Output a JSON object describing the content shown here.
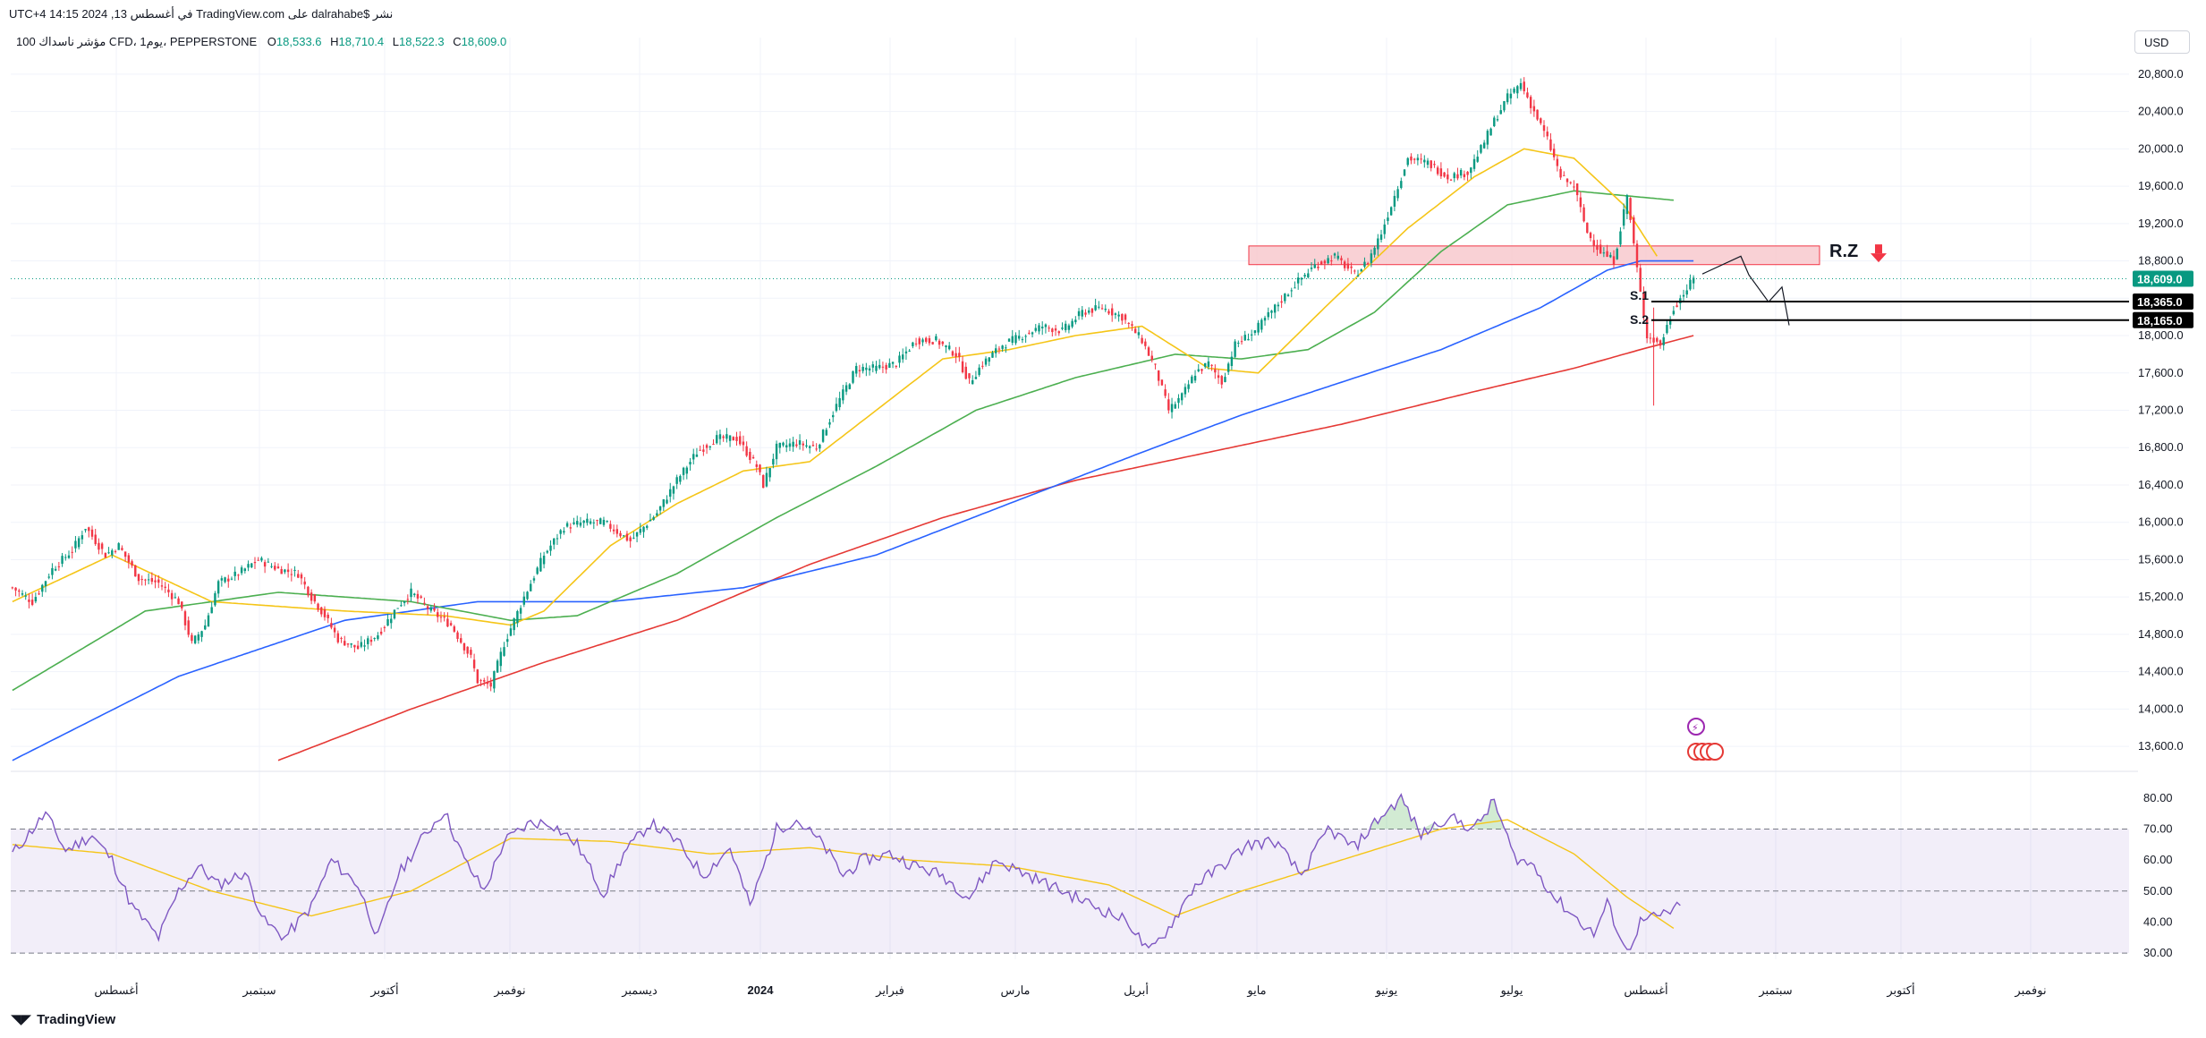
{
  "caption": "نشر $dalrahabe على TradingView.com في أغسطس 13, 2024 14:15 UTC+4",
  "legend": {
    "symbol": "مؤشر ناسداك 100 CFD، 1يوم، PEPPERSTONE",
    "open": "18,533.6",
    "high": "18,710.4",
    "low": "18,522.3",
    "close": "18,609.0"
  },
  "currency": "USD",
  "footer": {
    "brand": "TradingView"
  },
  "colors": {
    "up": "#089981",
    "down": "#f23645",
    "ma_fast": "#f5c518",
    "ma_mid": "#4caf50",
    "ma_slow": "#2962ff",
    "ma_long": "#e53935",
    "rsi": "#7e57c2",
    "rsi_ma": "#f5c518",
    "zone": "#f7c6ca",
    "zone_border": "#f23645"
  },
  "chart_data": [
    {
      "type": "candlestick",
      "ylim": [
        13400,
        21000
      ],
      "y_ticks": [
        "20,800.0",
        "20,400.0",
        "20,000.0",
        "19,600.0",
        "19,200.0",
        "18,800.0",
        "18,400.0",
        "18,000.0",
        "17,600.0",
        "17,200.0",
        "16,800.0",
        "16,400.0",
        "16,000.0",
        "15,600.0",
        "15,200.0",
        "14,800.0",
        "14,400.0",
        "14,000.0",
        "13,600.0"
      ],
      "y_tick_values": [
        20800,
        20400,
        20000,
        19600,
        19200,
        18800,
        18400,
        18000,
        17600,
        17200,
        16800,
        16400,
        16000,
        15600,
        15200,
        14800,
        14400,
        14000,
        13600
      ],
      "x_ticks": [
        "أغسطس",
        "سبتمبر",
        "أكتوبر",
        "نوفمبر",
        "ديسمبر",
        "2024",
        "فبراير",
        "مارس",
        "أبريل",
        "مايو",
        "يونيو",
        "يوليو",
        "أغسطس",
        "سبتمبر",
        "أكتوبر",
        "نوفمبر"
      ],
      "price_tags": [
        {
          "label": "18,609.0",
          "value": 18609,
          "style": "current"
        },
        {
          "label": "18,365.0",
          "value": 18365,
          "style": "level"
        },
        {
          "label": "18,165.0",
          "value": 18165,
          "style": "level"
        }
      ],
      "annotations": {
        "zone_label": "R.Z",
        "support_1": "S.1",
        "support_2": "S.2",
        "zone_low": 18760,
        "zone_high": 18960,
        "s1_value": 18365,
        "s2_value": 18165,
        "projection": [
          [
            18650,
            18850
          ],
          [
            18400,
            18320
          ],
          [
            18600,
            18110
          ]
        ]
      },
      "close_anchors": [
        [
          0,
          15300
        ],
        [
          6,
          15150
        ],
        [
          12,
          15500
        ],
        [
          18,
          15700
        ],
        [
          22,
          15950
        ],
        [
          28,
          15650
        ],
        [
          32,
          15750
        ],
        [
          38,
          15400
        ],
        [
          44,
          15350
        ],
        [
          50,
          15150
        ],
        [
          54,
          14700
        ],
        [
          58,
          14900
        ],
        [
          62,
          15350
        ],
        [
          68,
          15450
        ],
        [
          74,
          15600
        ],
        [
          80,
          15500
        ],
        [
          86,
          15450
        ],
        [
          90,
          15200
        ],
        [
          94,
          15000
        ],
        [
          98,
          14750
        ],
        [
          104,
          14650
        ],
        [
          110,
          14800
        ],
        [
          116,
          15100
        ],
        [
          120,
          15250
        ],
        [
          126,
          15050
        ],
        [
          132,
          14900
        ],
        [
          138,
          14550
        ],
        [
          140,
          14300
        ],
        [
          144,
          14250
        ],
        [
          148,
          14700
        ],
        [
          154,
          15200
        ],
        [
          160,
          15650
        ],
        [
          166,
          15950
        ],
        [
          172,
          16000
        ],
        [
          178,
          16000
        ],
        [
          186,
          15800
        ],
        [
          194,
          16100
        ],
        [
          200,
          16450
        ],
        [
          206,
          16750
        ],
        [
          212,
          16900
        ],
        [
          218,
          16900
        ],
        [
          224,
          16600
        ],
        [
          226,
          16400
        ],
        [
          230,
          16800
        ],
        [
          236,
          16850
        ],
        [
          242,
          16800
        ],
        [
          248,
          17250
        ],
        [
          254,
          17650
        ],
        [
          260,
          17650
        ],
        [
          266,
          17700
        ],
        [
          272,
          17950
        ],
        [
          278,
          17950
        ],
        [
          284,
          17800
        ],
        [
          288,
          17500
        ],
        [
          292,
          17700
        ],
        [
          298,
          17900
        ],
        [
          304,
          18000
        ],
        [
          310,
          18100
        ],
        [
          316,
          18050
        ],
        [
          322,
          18250
        ],
        [
          328,
          18300
        ],
        [
          334,
          18200
        ],
        [
          340,
          17950
        ],
        [
          344,
          17650
        ],
        [
          348,
          17200
        ],
        [
          352,
          17350
        ],
        [
          356,
          17600
        ],
        [
          360,
          17700
        ],
        [
          364,
          17500
        ],
        [
          368,
          17900
        ],
        [
          374,
          18050
        ],
        [
          380,
          18300
        ],
        [
          386,
          18550
        ],
        [
          392,
          18750
        ],
        [
          398,
          18850
        ],
        [
          404,
          18650
        ],
        [
          408,
          18800
        ],
        [
          412,
          19100
        ],
        [
          416,
          19500
        ],
        [
          420,
          19900
        ],
        [
          426,
          19850
        ],
        [
          432,
          19700
        ],
        [
          438,
          19750
        ],
        [
          442,
          20000
        ],
        [
          446,
          20300
        ],
        [
          450,
          20550
        ],
        [
          454,
          20700
        ],
        [
          458,
          20400
        ],
        [
          462,
          20100
        ],
        [
          466,
          19700
        ],
        [
          470,
          19600
        ],
        [
          474,
          19100
        ],
        [
          478,
          18900
        ],
        [
          482,
          18800
        ],
        [
          486,
          19500
        ],
        [
          490,
          18450
        ],
        [
          492,
          18000
        ],
        [
          496,
          17900
        ],
        [
          500,
          18300
        ],
        [
          504,
          18500
        ],
        [
          506,
          18609
        ]
      ],
      "ma_fast": [
        [
          0,
          15150
        ],
        [
          30,
          15650
        ],
        [
          60,
          15150
        ],
        [
          100,
          15050
        ],
        [
          130,
          15000
        ],
        [
          150,
          14900
        ],
        [
          160,
          15050
        ],
        [
          180,
          15750
        ],
        [
          200,
          16200
        ],
        [
          220,
          16550
        ],
        [
          240,
          16650
        ],
        [
          260,
          17200
        ],
        [
          280,
          17750
        ],
        [
          300,
          17850
        ],
        [
          320,
          18000
        ],
        [
          340,
          18100
        ],
        [
          360,
          17650
        ],
        [
          375,
          17600
        ],
        [
          395,
          18300
        ],
        [
          420,
          19150
        ],
        [
          440,
          19700
        ],
        [
          455,
          20000
        ],
        [
          470,
          19900
        ],
        [
          485,
          19400
        ],
        [
          495,
          18850
        ]
      ],
      "ma_mid": [
        [
          0,
          14200
        ],
        [
          40,
          15050
        ],
        [
          80,
          15250
        ],
        [
          120,
          15150
        ],
        [
          150,
          14950
        ],
        [
          170,
          15000
        ],
        [
          200,
          15450
        ],
        [
          230,
          16050
        ],
        [
          260,
          16600
        ],
        [
          290,
          17200
        ],
        [
          320,
          17550
        ],
        [
          350,
          17800
        ],
        [
          370,
          17750
        ],
        [
          390,
          17850
        ],
        [
          410,
          18250
        ],
        [
          430,
          18900
        ],
        [
          450,
          19400
        ],
        [
          470,
          19550
        ],
        [
          485,
          19500
        ],
        [
          500,
          19450
        ]
      ],
      "ma_slow": [
        [
          0,
          13450
        ],
        [
          50,
          14350
        ],
        [
          100,
          14950
        ],
        [
          140,
          15150
        ],
        [
          180,
          15150
        ],
        [
          220,
          15300
        ],
        [
          260,
          15650
        ],
        [
          300,
          16200
        ],
        [
          340,
          16750
        ],
        [
          370,
          17150
        ],
        [
          400,
          17500
        ],
        [
          430,
          17850
        ],
        [
          460,
          18300
        ],
        [
          480,
          18700
        ],
        [
          490,
          18800
        ],
        [
          506,
          18800
        ]
      ],
      "ma_long": [
        [
          80,
          13450
        ],
        [
          120,
          14000
        ],
        [
          160,
          14500
        ],
        [
          200,
          14950
        ],
        [
          240,
          15550
        ],
        [
          280,
          16050
        ],
        [
          320,
          16450
        ],
        [
          360,
          16750
        ],
        [
          400,
          17050
        ],
        [
          440,
          17400
        ],
        [
          470,
          17650
        ],
        [
          490,
          17850
        ],
        [
          506,
          18000
        ]
      ]
    },
    {
      "type": "line",
      "name": "RSI",
      "ylim": [
        28,
        84
      ],
      "y_ticks": [
        "80.00",
        "70.00",
        "60.00",
        "50.00",
        "40.00",
        "30.00"
      ],
      "y_tick_values": [
        80,
        70,
        60,
        50,
        40,
        30
      ],
      "levels": [
        70,
        50,
        30
      ],
      "rsi_anchors": [
        [
          0,
          62
        ],
        [
          10,
          75
        ],
        [
          16,
          63
        ],
        [
          24,
          68
        ],
        [
          30,
          60
        ],
        [
          36,
          45
        ],
        [
          44,
          35
        ],
        [
          50,
          50
        ],
        [
          56,
          58
        ],
        [
          62,
          52
        ],
        [
          70,
          56
        ],
        [
          76,
          40
        ],
        [
          82,
          35
        ],
        [
          90,
          45
        ],
        [
          96,
          60
        ],
        [
          104,
          52
        ],
        [
          110,
          35
        ],
        [
          116,
          55
        ],
        [
          124,
          68
        ],
        [
          130,
          76
        ],
        [
          136,
          60
        ],
        [
          142,
          50
        ],
        [
          148,
          66
        ],
        [
          156,
          72
        ],
        [
          162,
          72
        ],
        [
          170,
          65
        ],
        [
          178,
          49
        ],
        [
          184,
          62
        ],
        [
          192,
          72
        ],
        [
          200,
          66
        ],
        [
          208,
          55
        ],
        [
          216,
          64
        ],
        [
          222,
          45
        ],
        [
          230,
          70
        ],
        [
          236,
          73
        ],
        [
          244,
          65
        ],
        [
          250,
          55
        ],
        [
          256,
          60
        ],
        [
          264,
          62
        ],
        [
          272,
          58
        ],
        [
          280,
          55
        ],
        [
          288,
          48
        ],
        [
          296,
          60
        ],
        [
          304,
          56
        ],
        [
          312,
          52
        ],
        [
          320,
          48
        ],
        [
          328,
          44
        ],
        [
          336,
          40
        ],
        [
          342,
          30
        ],
        [
          348,
          38
        ],
        [
          356,
          52
        ],
        [
          364,
          58
        ],
        [
          372,
          65
        ],
        [
          380,
          66
        ],
        [
          388,
          55
        ],
        [
          396,
          70
        ],
        [
          404,
          64
        ],
        [
          410,
          72
        ],
        [
          418,
          80
        ],
        [
          424,
          68
        ],
        [
          432,
          74
        ],
        [
          440,
          70
        ],
        [
          446,
          79
        ],
        [
          452,
          61
        ],
        [
          458,
          58
        ],
        [
          464,
          48
        ],
        [
          470,
          42
        ],
        [
          476,
          36
        ],
        [
          480,
          46
        ],
        [
          486,
          30
        ],
        [
          490,
          40
        ],
        [
          496,
          42
        ],
        [
          502,
          45
        ]
      ],
      "rsi_ma_anchors": [
        [
          0,
          65
        ],
        [
          30,
          62
        ],
        [
          60,
          50
        ],
        [
          90,
          42
        ],
        [
          120,
          50
        ],
        [
          150,
          67
        ],
        [
          180,
          66
        ],
        [
          210,
          62
        ],
        [
          240,
          64
        ],
        [
          270,
          60
        ],
        [
          300,
          58
        ],
        [
          330,
          52
        ],
        [
          350,
          42
        ],
        [
          370,
          50
        ],
        [
          400,
          60
        ],
        [
          430,
          70
        ],
        [
          450,
          73
        ],
        [
          470,
          62
        ],
        [
          486,
          48
        ],
        [
          500,
          38
        ]
      ]
    }
  ]
}
